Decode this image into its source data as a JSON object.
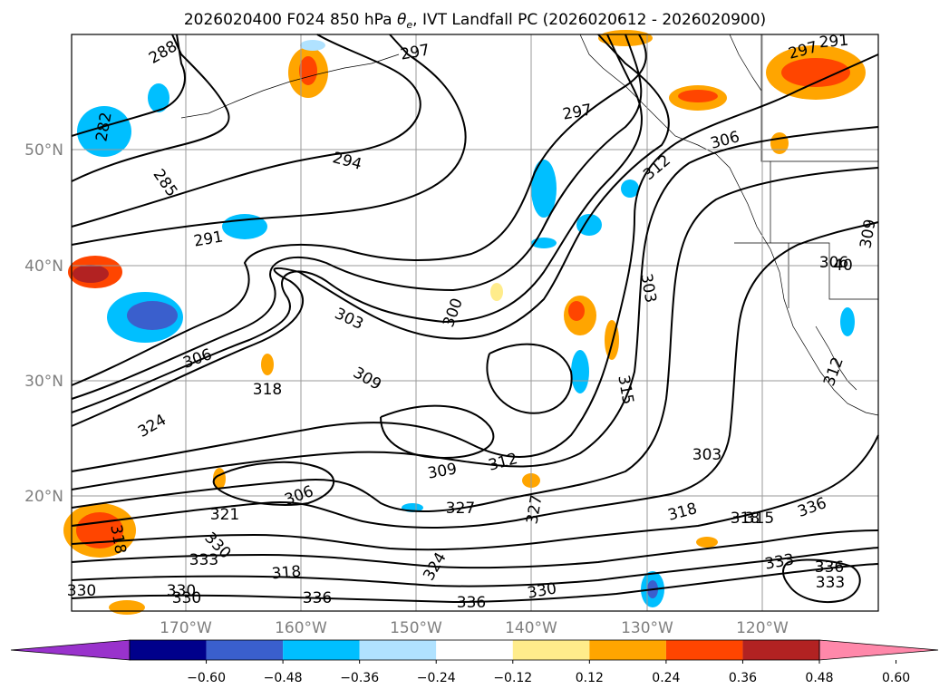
{
  "chart_data": {
    "type": "contour_map",
    "title_parts": {
      "prefix": "2026020400 F024 850 hPa ",
      "theta": "θ",
      "theta_sub": "e",
      "suffix": ", IVT Landfall PC (2026020612 - 2026020900)"
    },
    "longitude_ticks": [
      "170°W",
      "160°W",
      "150°W",
      "140°W",
      "130°W",
      "120°W"
    ],
    "latitude_ticks": [
      "50°N",
      "40°N",
      "30°N",
      "20°N"
    ],
    "colorbar": {
      "extend": "both",
      "tick_labels": [
        "−0.60",
        "−0.48",
        "−0.36",
        "−0.24",
        "−0.12",
        "0.12",
        "0.24",
        "0.36",
        "0.48",
        "0.60"
      ],
      "colors": [
        "#9932cc",
        "#00008b",
        "#3a5fcd",
        "#00bfff",
        "#b0e2ff",
        "#ffffff",
        "#ffec8b",
        "#ffa500",
        "#ff4500",
        "#b22222",
        "#ff88aa"
      ]
    },
    "contour_labels": [
      "288",
      "297",
      "291",
      "297",
      "282",
      "297",
      "306",
      "294",
      "285",
      "312",
      "291",
      "309",
      "40",
      "306",
      "300",
      "303",
      "303",
      "306",
      "309",
      "318",
      "315",
      "324",
      "327",
      "303",
      "312",
      "309",
      "306",
      "327",
      "321",
      "318",
      "315",
      "318",
      "330",
      "324",
      "336",
      "333",
      "318",
      "330",
      "336",
      "333",
      "336",
      "333",
      "330",
      "330",
      "336",
      "312",
      "318",
      "330"
    ],
    "grid": true
  }
}
